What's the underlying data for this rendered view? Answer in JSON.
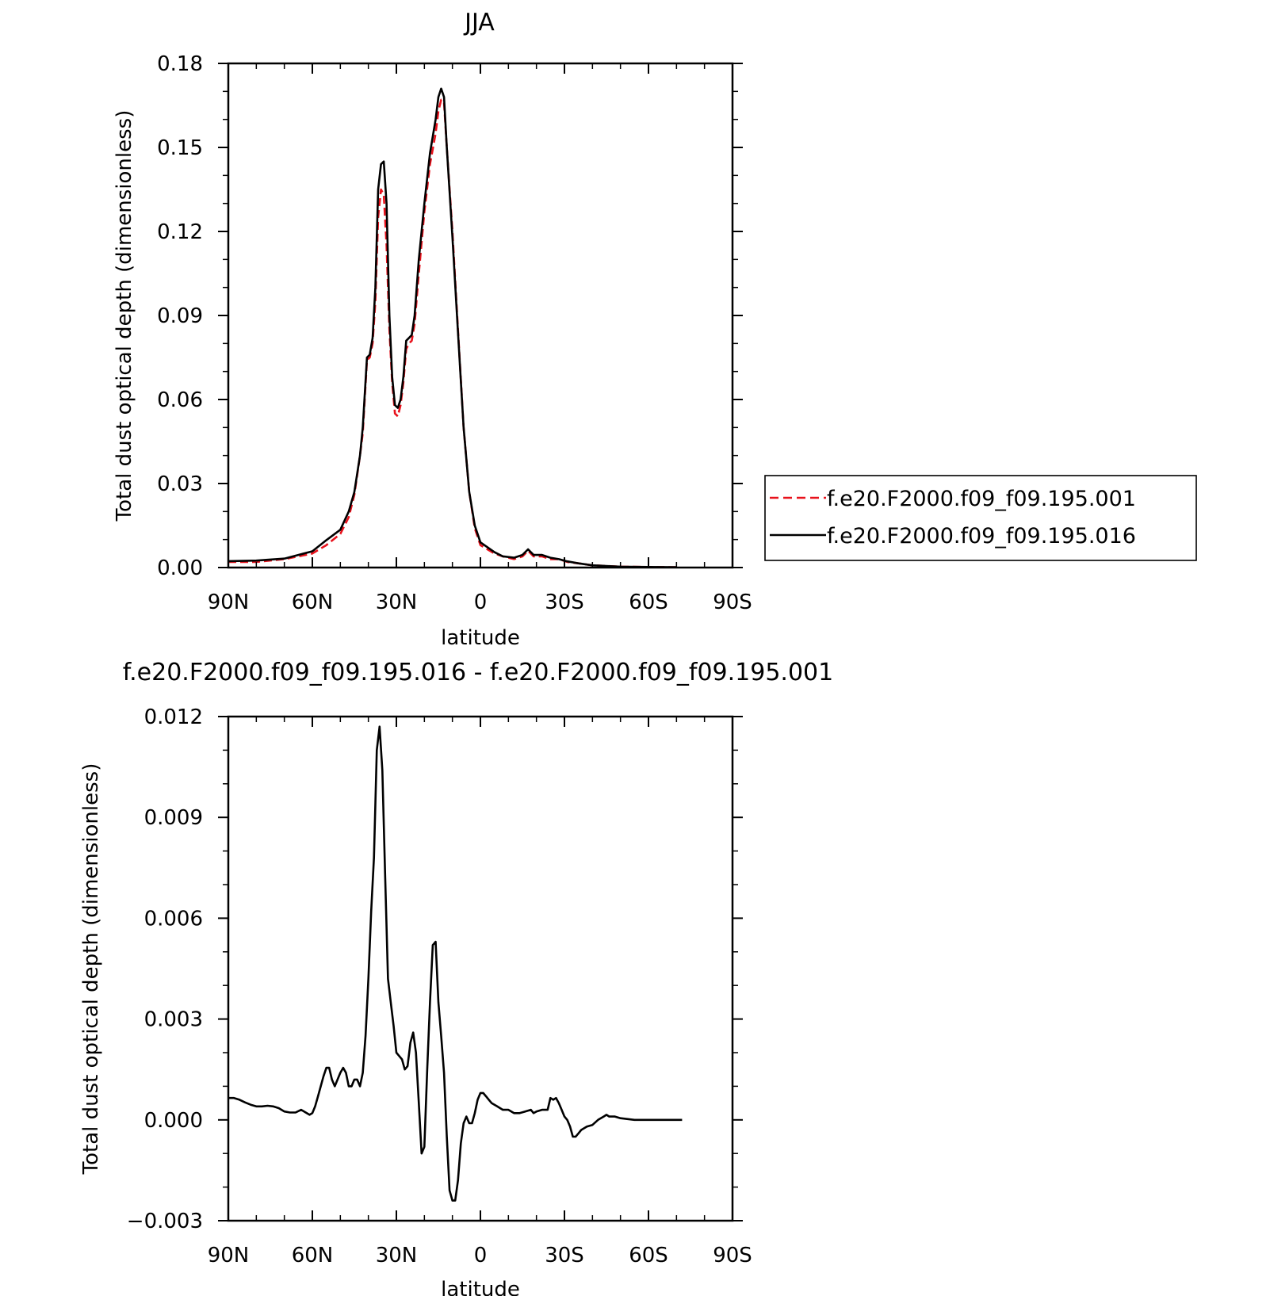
{
  "chart_data": [
    {
      "type": "line",
      "title": "JJA",
      "xlabel": "latitude",
      "ylabel": "Total dust optical depth (dimensionless)",
      "xlim": [
        -90,
        90
      ],
      "ylim": [
        0,
        0.18
      ],
      "xticks": [
        -90,
        -60,
        -30,
        0,
        30,
        60,
        90
      ],
      "xticklabels": [
        "90N",
        "60N",
        "30N",
        "0",
        "30S",
        "60S",
        "90S"
      ],
      "yticks": [
        0,
        0.03,
        0.06,
        0.09,
        0.12,
        0.15,
        0.18
      ],
      "yticklabels": [
        "0.00",
        "0.03",
        "0.06",
        "0.09",
        "0.12",
        "0.15",
        "0.18"
      ],
      "legend_position": "right",
      "series": [
        {
          "name": "f.e20.F2000.f09_f09.195.001",
          "color": "#e8121c",
          "dash": "dashed",
          "points": [
            [
              -90,
              0.002
            ],
            [
              -80,
              0.002
            ],
            [
              -70,
              0.003
            ],
            [
              -65,
              0.004
            ],
            [
              -60,
              0.005
            ],
            [
              -55,
              0.008
            ],
            [
              -50,
              0.012
            ],
            [
              -47,
              0.018
            ],
            [
              -45,
              0.026
            ],
            [
              -43,
              0.04
            ],
            [
              -42,
              0.048
            ],
            [
              -40.5,
              0.074
            ],
            [
              -39.5,
              0.075
            ],
            [
              -38.5,
              0.08
            ],
            [
              -37.5,
              0.095
            ],
            [
              -36.5,
              0.125
            ],
            [
              -35.5,
              0.135
            ],
            [
              -34.5,
              0.133
            ],
            [
              -33.5,
              0.115
            ],
            [
              -32.5,
              0.085
            ],
            [
              -31.5,
              0.066
            ],
            [
              -30.5,
              0.055
            ],
            [
              -29.5,
              0.054
            ],
            [
              -28.5,
              0.058
            ],
            [
              -27.5,
              0.066
            ],
            [
              -26.5,
              0.078
            ],
            [
              -25.5,
              0.08
            ],
            [
              -24.5,
              0.081
            ],
            [
              -23.5,
              0.087
            ],
            [
              -22,
              0.105
            ],
            [
              -20,
              0.127
            ],
            [
              -18,
              0.144
            ],
            [
              -16,
              0.155
            ],
            [
              -15,
              0.163
            ],
            [
              -14,
              0.167
            ],
            [
              -13,
              0.166
            ],
            [
              -12,
              0.15
            ],
            [
              -10,
              0.12
            ],
            [
              -8,
              0.085
            ],
            [
              -6,
              0.05
            ],
            [
              -4,
              0.027
            ],
            [
              -2,
              0.014
            ],
            [
              0,
              0.008
            ],
            [
              5,
              0.005
            ],
            [
              8,
              0.004
            ],
            [
              12,
              0.003
            ],
            [
              15,
              0.004
            ],
            [
              17,
              0.006
            ],
            [
              19,
              0.004
            ],
            [
              22,
              0.004
            ],
            [
              25,
              0.003
            ],
            [
              28,
              0.003
            ],
            [
              31,
              0.002
            ],
            [
              35,
              0.0015
            ],
            [
              40,
              0.0008
            ],
            [
              50,
              0.0003
            ],
            [
              60,
              0.0002
            ],
            [
              70,
              0.0001
            ]
          ]
        },
        {
          "name": "f.e20.F2000.f09_f09.195.016",
          "color": "#000000",
          "dash": "solid",
          "points": [
            [
              -90,
              0.0023
            ],
            [
              -80,
              0.0025
            ],
            [
              -70,
              0.0032
            ],
            [
              -65,
              0.0045
            ],
            [
              -60,
              0.0058
            ],
            [
              -55,
              0.0098
            ],
            [
              -50,
              0.0135
            ],
            [
              -47,
              0.02
            ],
            [
              -45,
              0.027
            ],
            [
              -43,
              0.04
            ],
            [
              -42,
              0.05
            ],
            [
              -40.5,
              0.075
            ],
            [
              -39.5,
              0.076
            ],
            [
              -38.5,
              0.082
            ],
            [
              -37.5,
              0.1
            ],
            [
              -36.5,
              0.135
            ],
            [
              -35.5,
              0.144
            ],
            [
              -34.5,
              0.145
            ],
            [
              -33.5,
              0.13
            ],
            [
              -32.5,
              0.09
            ],
            [
              -31.5,
              0.068
            ],
            [
              -30.5,
              0.058
            ],
            [
              -29.5,
              0.057
            ],
            [
              -28.5,
              0.06
            ],
            [
              -27.5,
              0.068
            ],
            [
              -26.5,
              0.081
            ],
            [
              -25.5,
              0.082
            ],
            [
              -24.5,
              0.083
            ],
            [
              -23.5,
              0.09
            ],
            [
              -22,
              0.11
            ],
            [
              -20,
              0.13
            ],
            [
              -18,
              0.148
            ],
            [
              -16,
              0.16
            ],
            [
              -15,
              0.168
            ],
            [
              -14,
              0.171
            ],
            [
              -13,
              0.168
            ],
            [
              -12,
              0.15
            ],
            [
              -10,
              0.118
            ],
            [
              -8,
              0.084
            ],
            [
              -6,
              0.05
            ],
            [
              -4,
              0.027
            ],
            [
              -2,
              0.015
            ],
            [
              0,
              0.009
            ],
            [
              5,
              0.0055
            ],
            [
              8,
              0.004
            ],
            [
              12,
              0.0035
            ],
            [
              15,
              0.0045
            ],
            [
              17,
              0.0065
            ],
            [
              19,
              0.0045
            ],
            [
              22,
              0.0045
            ],
            [
              25,
              0.0035
            ],
            [
              28,
              0.003
            ],
            [
              31,
              0.0022
            ],
            [
              35,
              0.0015
            ],
            [
              40,
              0.0008
            ],
            [
              50,
              0.0003
            ],
            [
              60,
              0.0002
            ],
            [
              70,
              0.0001
            ]
          ]
        }
      ]
    },
    {
      "type": "line",
      "title": "f.e20.F2000.f09_f09.195.016 - f.e20.F2000.f09_f09.195.001",
      "xlabel": "latitude",
      "ylabel": "Total dust optical depth (dimensionless)",
      "xlim": [
        -90,
        90
      ],
      "ylim": [
        -0.003,
        0.012
      ],
      "xticks": [
        -90,
        -60,
        -30,
        0,
        30,
        60,
        90
      ],
      "xticklabels": [
        "90N",
        "60N",
        "30N",
        "0",
        "30S",
        "60S",
        "90S"
      ],
      "yticks": [
        -0.003,
        0,
        0.003,
        0.006,
        0.009,
        0.012
      ],
      "yticklabels": [
        "−0.003",
        "0.000",
        "0.003",
        "0.006",
        "0.009",
        "0.012"
      ],
      "series": [
        {
          "color": "#000000",
          "dash": "solid",
          "points": [
            [
              -90,
              0.00065
            ],
            [
              -88,
              0.00065
            ],
            [
              -86,
              0.0006
            ],
            [
              -84,
              0.00052
            ],
            [
              -82,
              0.00045
            ],
            [
              -80,
              0.0004
            ],
            [
              -78,
              0.0004
            ],
            [
              -76,
              0.00042
            ],
            [
              -74,
              0.0004
            ],
            [
              -72,
              0.00035
            ],
            [
              -70,
              0.00025
            ],
            [
              -68,
              0.00022
            ],
            [
              -66,
              0.00022
            ],
            [
              -64,
              0.0003
            ],
            [
              -62,
              0.0002
            ],
            [
              -61,
              0.00015
            ],
            [
              -60,
              0.0002
            ],
            [
              -59,
              0.0004
            ],
            [
              -58,
              0.0007
            ],
            [
              -57,
              0.001
            ],
            [
              -56,
              0.0013
            ],
            [
              -55,
              0.00155
            ],
            [
              -54,
              0.00155
            ],
            [
              -53,
              0.0012
            ],
            [
              -52,
              0.001
            ],
            [
              -51,
              0.0012
            ],
            [
              -50,
              0.0014
            ],
            [
              -49,
              0.00155
            ],
            [
              -48,
              0.0014
            ],
            [
              -47,
              0.001
            ],
            [
              -46,
              0.001
            ],
            [
              -45,
              0.0012
            ],
            [
              -44,
              0.0012
            ],
            [
              -43,
              0.001
            ],
            [
              -42,
              0.0014
            ],
            [
              -41,
              0.0025
            ],
            [
              -40,
              0.0042
            ],
            [
              -39,
              0.0062
            ],
            [
              -38,
              0.0078
            ],
            [
              -37,
              0.011
            ],
            [
              -36,
              0.0117
            ],
            [
              -35,
              0.0104
            ],
            [
              -34,
              0.0072
            ],
            [
              -33,
              0.0042
            ],
            [
              -32,
              0.0035
            ],
            [
              -31,
              0.0028
            ],
            [
              -30,
              0.002
            ],
            [
              -29,
              0.0019
            ],
            [
              -28,
              0.0018
            ],
            [
              -27,
              0.0015
            ],
            [
              -26,
              0.0016
            ],
            [
              -25,
              0.0023
            ],
            [
              -24,
              0.0026
            ],
            [
              -23,
              0.002
            ],
            [
              -22,
              0.0005
            ],
            [
              -21,
              -0.001
            ],
            [
              -20,
              -0.0008
            ],
            [
              -19,
              0.0015
            ],
            [
              -18,
              0.0035
            ],
            [
              -17,
              0.0052
            ],
            [
              -16,
              0.0053
            ],
            [
              -15,
              0.0035
            ],
            [
              -14,
              0.0025
            ],
            [
              -13,
              0.0014
            ],
            [
              -12,
              -0.0005
            ],
            [
              -11,
              -0.0021
            ],
            [
              -10,
              -0.0024
            ],
            [
              -9,
              -0.0024
            ],
            [
              -8,
              -0.0018
            ],
            [
              -7,
              -0.0007
            ],
            [
              -6,
              -0.0001
            ],
            [
              -5,
              0.0001
            ],
            [
              -4,
              -0.0001
            ],
            [
              -3,
              -0.0001
            ],
            [
              -2,
              0.0002
            ],
            [
              -1,
              0.0006
            ],
            [
              0,
              0.0008
            ],
            [
              1,
              0.0008
            ],
            [
              2,
              0.0007
            ],
            [
              3,
              0.0006
            ],
            [
              4,
              0.0005
            ],
            [
              6,
              0.0004
            ],
            [
              8,
              0.0003
            ],
            [
              10,
              0.0003
            ],
            [
              12,
              0.0002
            ],
            [
              14,
              0.0002
            ],
            [
              16,
              0.00025
            ],
            [
              18,
              0.0003
            ],
            [
              19,
              0.0002
            ],
            [
              20,
              0.00025
            ],
            [
              22,
              0.0003
            ],
            [
              24,
              0.0003
            ],
            [
              25,
              0.00065
            ],
            [
              26,
              0.0006
            ],
            [
              27,
              0.00065
            ],
            [
              28,
              0.0005
            ],
            [
              29,
              0.0003
            ],
            [
              30,
              0.0001
            ],
            [
              31,
              0.0
            ],
            [
              32,
              -0.0002
            ],
            [
              33,
              -0.0005
            ],
            [
              34,
              -0.0005
            ],
            [
              35,
              -0.0004
            ],
            [
              36,
              -0.0003
            ],
            [
              38,
              -0.0002
            ],
            [
              40,
              -0.00015
            ],
            [
              42,
              0.0
            ],
            [
              44,
              0.0001
            ],
            [
              45,
              0.00015
            ],
            [
              46,
              0.0001
            ],
            [
              48,
              0.0001
            ],
            [
              50,
              5e-05
            ],
            [
              55,
              0.0
            ],
            [
              60,
              0.0
            ],
            [
              65,
              0.0
            ],
            [
              70,
              0.0
            ],
            [
              72,
              0.0
            ]
          ]
        }
      ]
    }
  ]
}
